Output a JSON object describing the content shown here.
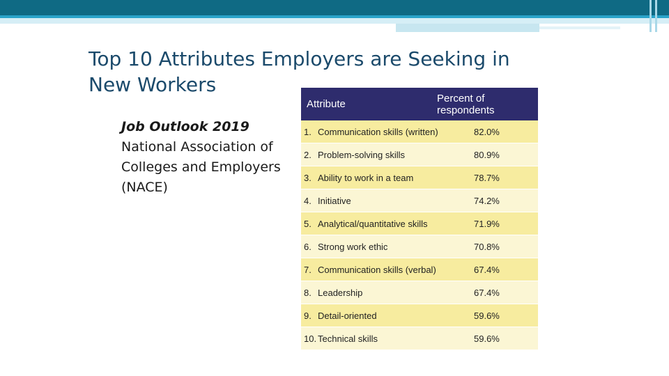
{
  "slide": {
    "title": "Top 10 Attributes Employers are Seeking in New Workers",
    "source": {
      "line1": "Job Outlook 2019",
      "line2": "National Association of",
      "line3": "Colleges and Employers",
      "line4": "(NACE)"
    }
  },
  "table": {
    "headers": {
      "attribute": "Attribute",
      "percent": "Percent of respondents"
    },
    "rows": [
      {
        "num": "1.",
        "attribute": "Communication skills (written)",
        "percent": "82.0%"
      },
      {
        "num": "2.",
        "attribute": "Problem-solving skills",
        "percent": "80.9%"
      },
      {
        "num": "3.",
        "attribute": "Ability to work in a team",
        "percent": "78.7%"
      },
      {
        "num": "4.",
        "attribute": "Initiative",
        "percent": "74.2%"
      },
      {
        "num": "5.",
        "attribute": "Analytical/quantitative skills",
        "percent": "71.9%"
      },
      {
        "num": "6.",
        "attribute": "Strong work ethic",
        "percent": "70.8%"
      },
      {
        "num": "7.",
        "attribute": "Communication skills (verbal)",
        "percent": "67.4%"
      },
      {
        "num": "8.",
        "attribute": "Leadership",
        "percent": "67.4%"
      },
      {
        "num": "9.",
        "attribute": "Detail-oriented",
        "percent": "59.6%"
      },
      {
        "num": "10.",
        "attribute": "Technical skills",
        "percent": "59.6%"
      }
    ]
  },
  "colors": {
    "header_band": "#0f6a84",
    "title_text": "#1b4a6b",
    "table_header": "#2e2c6d",
    "row_odd": "#f7ec9f",
    "row_even": "#fbf6d4"
  }
}
